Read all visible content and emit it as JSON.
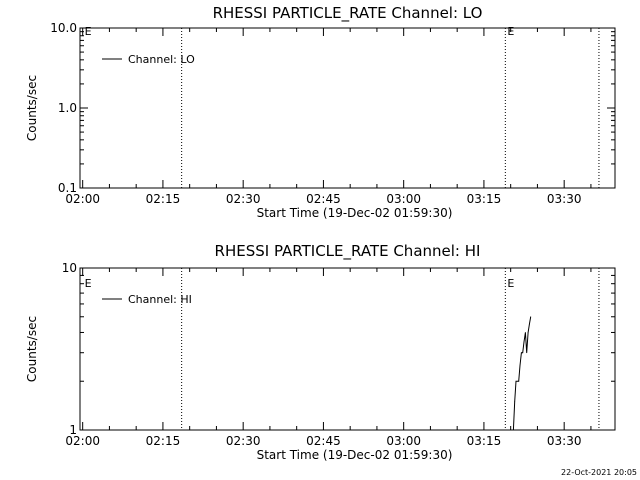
{
  "footer_timestamp": "22-Oct-2021 20:05",
  "chart_data": [
    {
      "type": "line",
      "title": "RHESSI PARTICLE_RATE Channel: LO",
      "xlabel": "Start Time (19-Dec-02 01:59:30)",
      "ylabel": "Counts/sec",
      "y_scale": "log",
      "ylim": [
        0.1,
        10.0
      ],
      "y_ticks": [
        0.1,
        1.0,
        10.0
      ],
      "y_tick_labels": [
        "0.1",
        "1.0",
        "10.0"
      ],
      "x_ticks": [
        "02:00",
        "02:15",
        "02:30",
        "02:45",
        "03:00",
        "03:15",
        "03:30"
      ],
      "xlim": [
        "01:59:30",
        "03:39:30"
      ],
      "vertical_lines": [
        "02:18:30",
        "03:19:00",
        "03:36:30"
      ],
      "annotations": [
        {
          "text": "E",
          "at": "02:00:00"
        },
        {
          "text": "E",
          "at": "03:19:00"
        }
      ],
      "legend": {
        "entries": [
          "Channel: LO"
        ],
        "placement": "top-left"
      },
      "series": [
        {
          "name": "Channel: LO",
          "points": []
        }
      ],
      "grid": false
    },
    {
      "type": "line",
      "title": "RHESSI PARTICLE_RATE Channel: HI",
      "xlabel": "Start Time (19-Dec-02 01:59:30)",
      "ylabel": "Counts/sec",
      "y_scale": "log",
      "ylim": [
        1,
        10
      ],
      "y_ticks": [
        1,
        10
      ],
      "y_tick_labels": [
        "1",
        "10"
      ],
      "x_ticks": [
        "02:00",
        "02:15",
        "02:30",
        "02:45",
        "03:00",
        "03:15",
        "03:30"
      ],
      "xlim": [
        "01:59:30",
        "03:39:30"
      ],
      "vertical_lines": [
        "02:18:30",
        "03:19:00",
        "03:36:30"
      ],
      "annotations": [
        {
          "text": "E",
          "at": "02:00:00"
        },
        {
          "text": "E",
          "at": "03:19:00"
        }
      ],
      "legend": {
        "entries": [
          "Channel: HI"
        ],
        "placement": "top-left"
      },
      "series": [
        {
          "name": "Channel: HI",
          "points": [
            [
              "03:20:30",
              1.0
            ],
            [
              "03:20:45",
              1.5
            ],
            [
              "03:21:00",
              2.0
            ],
            [
              "03:21:15",
              2.0
            ],
            [
              "03:21:30",
              2.0
            ],
            [
              "03:21:45",
              2.5
            ],
            [
              "03:22:00",
              3.0
            ],
            [
              "03:22:15",
              3.0
            ],
            [
              "03:22:30",
              3.5
            ],
            [
              "03:22:45",
              4.0
            ],
            [
              "03:23:00",
              3.0
            ],
            [
              "03:23:15",
              4.0
            ],
            [
              "03:23:30",
              4.5
            ],
            [
              "03:23:45",
              5.0
            ]
          ]
        }
      ],
      "grid": false
    }
  ]
}
